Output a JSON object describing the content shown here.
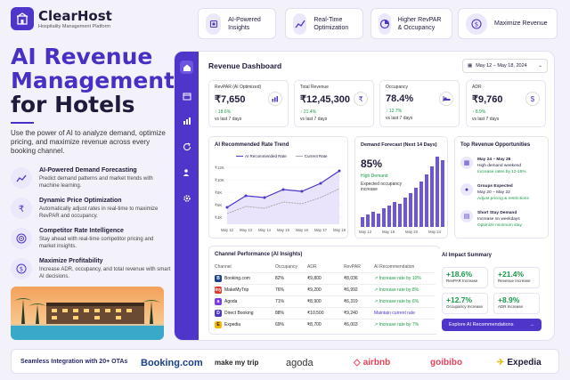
{
  "brand": {
    "name": "ClearHost",
    "tagline": "Hospitality Management Platform"
  },
  "features_top": [
    {
      "label": "AI-Powered Insights",
      "icon": "chip-icon"
    },
    {
      "label": "Real-Time Optimization",
      "icon": "trend-icon"
    },
    {
      "label": "Higher RevPAR & Occupancy",
      "icon": "pie-icon"
    },
    {
      "label": "Maximize Revenue",
      "icon": "dollar-icon"
    }
  ],
  "hero": {
    "line1": "AI Revenue",
    "line2": "Management",
    "line3": "for Hotels",
    "description": "Use the power of AI to analyze demand, optimize pricing, and maximize revenue across every booking channel."
  },
  "features": [
    {
      "title": "AI-Powered Demand Forecasting",
      "desc": "Predict demand patterns and market trends with machine learning."
    },
    {
      "title": "Dynamic Price Optimization",
      "desc": "Automatically adjust rates in real-time to maximize RevPAR and occupancy."
    },
    {
      "title": "Competitor Rate Intelligence",
      "desc": "Stay ahead with real-time competitor pricing and market insights."
    },
    {
      "title": "Maximize Profitability",
      "desc": "Increase ADR, occupancy, and total revenue with smart AI decisions."
    }
  ],
  "dashboard": {
    "title": "Revenue Dashboard",
    "date_range": "May 12 – May 18, 2024",
    "kpis": [
      {
        "label": "RevPAR (AI Optimized)",
        "value": "₹7,650",
        "change": "↑ 18.6%",
        "sub": "vs last 7 days"
      },
      {
        "label": "Total Revenue",
        "value": "₹12,45,300",
        "change": "↑ 21.4%",
        "sub": "vs last 7 days"
      },
      {
        "label": "Occupancy",
        "value": "78.4%",
        "change": "↑ 12.7%",
        "sub": "vs last 7 days"
      },
      {
        "label": "ADR",
        "value": "₹9,760",
        "change": "↑ 8.9%",
        "sub": "vs last 7 days"
      }
    ],
    "trend": {
      "title": "AI Recommended Rate Trend",
      "legend_ai": "AI Recommended Rate",
      "legend_current": "Current Rate",
      "y_ticks": [
        "₹12K",
        "₹10K",
        "₹8K",
        "₹6K",
        "₹4K"
      ],
      "x_ticks": [
        "May 12",
        "May 13",
        "May 14",
        "May 15",
        "May 16",
        "May 17",
        "May 18"
      ]
    },
    "forecast": {
      "title": "Demand Forecast (Next 14 Days)",
      "value": "85%",
      "status": "High Demand",
      "note": "Expected occupancy increase",
      "x_ticks": [
        "May 12",
        "May 16",
        "May 20",
        "May 24"
      ]
    },
    "opportunities": {
      "title": "Top Revenue Opportunities",
      "items": [
        {
          "title": "May 24 – May 26",
          "sub": "High demand weekend",
          "action": "Increase rates by 12-15%"
        },
        {
          "title": "Groups Expected",
          "sub": "May 20 – May 22",
          "action": "Adjust pricing & restrictions"
        },
        {
          "title": "Short Stay Demand",
          "sub": "Increase on weekdays",
          "action": "Optimize minimum stay"
        }
      ]
    },
    "channels": {
      "title": "Channel Performance (AI Insights)",
      "headers": [
        "Channel",
        "Occupancy",
        "ADR",
        "RevPAR",
        "AI Recommendation"
      ],
      "rows": [
        {
          "name": "Booking.com",
          "occ": "82%",
          "adr": "₹9,800",
          "revpar": "₹8,036",
          "rec": "↗ Increase rate by 10%",
          "chip": "B",
          "color": "#1a3f8f"
        },
        {
          "name": "MakeMyTrip",
          "occ": "76%",
          "adr": "₹9,200",
          "revpar": "₹6,992",
          "rec": "↗ Increase rate by 8%",
          "chip": "my",
          "color": "#e03a2e"
        },
        {
          "name": "Agoda",
          "occ": "71%",
          "adr": "₹8,900",
          "revpar": "₹6,319",
          "rec": "↗ Increase rate by 6%",
          "chip": "a",
          "color": "#7c3aed"
        },
        {
          "name": "Direct Booking",
          "occ": "88%",
          "adr": "₹10,500",
          "revpar": "₹9,240",
          "rec": "Maintain current rate",
          "chip": "D",
          "color": "#4f35c9"
        },
        {
          "name": "Expedia",
          "occ": "69%",
          "adr": "₹8,700",
          "revpar": "₹6,003",
          "rec": "↗ Increase rate by 7%",
          "chip": "E",
          "color": "#f2b705"
        }
      ]
    },
    "impact": {
      "title": "AI Impact Summary",
      "items": [
        {
          "value": "+18.6%",
          "label": "RevPAR Increase"
        },
        {
          "value": "+21.4%",
          "label": "Revenue Increase"
        },
        {
          "value": "+12.7%",
          "label": "Occupancy Increase"
        },
        {
          "value": "+8.9%",
          "label": "ADR Increase"
        }
      ],
      "button": "Explore AI Recommendations"
    }
  },
  "integrations": {
    "label": "Seamless Integration with 20+ OTAs",
    "otas": [
      "Booking.com",
      "make my trip",
      "agoda",
      "airbnb",
      "goibibo",
      "Expedia"
    ]
  }
}
